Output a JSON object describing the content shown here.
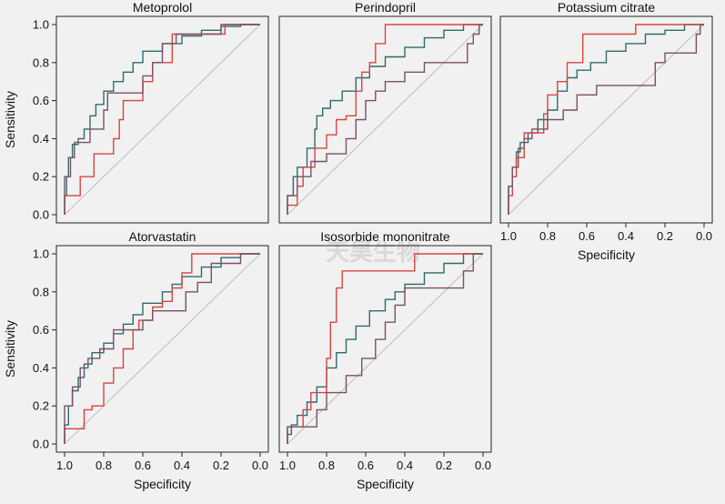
{
  "chart_data": [
    {
      "type": "line",
      "title": "Metoprolol",
      "xlabel": "",
      "ylabel": "Sensitivity",
      "xlim": [
        1.0,
        0.0
      ],
      "ylim": [
        0.0,
        1.0
      ],
      "xticks": [],
      "yticks": [
        "0.0",
        "0.2",
        "0.4",
        "0.6",
        "0.8",
        "1.0"
      ],
      "grid": false,
      "series": [
        {
          "color": "#2e6b6b",
          "points": [
            [
              1.0,
              0.0
            ],
            [
              0.99,
              0.1
            ],
            [
              0.98,
              0.2
            ],
            [
              0.96,
              0.3
            ],
            [
              0.93,
              0.37
            ],
            [
              0.9,
              0.4
            ],
            [
              0.87,
              0.45
            ],
            [
              0.84,
              0.52
            ],
            [
              0.8,
              0.58
            ],
            [
              0.75,
              0.65
            ],
            [
              0.7,
              0.7
            ],
            [
              0.65,
              0.75
            ],
            [
              0.6,
              0.8
            ],
            [
              0.5,
              0.86
            ],
            [
              0.4,
              0.9
            ],
            [
              0.3,
              0.94
            ],
            [
              0.2,
              0.97
            ],
            [
              0.1,
              0.99
            ],
            [
              0.0,
              1.0
            ]
          ]
        },
        {
          "color": "#d9443f",
          "points": [
            [
              1.0,
              0.0
            ],
            [
              0.98,
              0.1
            ],
            [
              0.92,
              0.1
            ],
            [
              0.9,
              0.2
            ],
            [
              0.85,
              0.2
            ],
            [
              0.82,
              0.32
            ],
            [
              0.75,
              0.32
            ],
            [
              0.72,
              0.4
            ],
            [
              0.7,
              0.5
            ],
            [
              0.66,
              0.6
            ],
            [
              0.6,
              0.6
            ],
            [
              0.55,
              0.7
            ],
            [
              0.45,
              0.8
            ],
            [
              0.42,
              0.95
            ],
            [
              0.18,
              0.95
            ],
            [
              0.1,
              1.0
            ],
            [
              0.0,
              1.0
            ]
          ]
        },
        {
          "color": "#7a5068",
          "points": [
            [
              1.0,
              0.0
            ],
            [
              0.97,
              0.2
            ],
            [
              0.95,
              0.3
            ],
            [
              0.92,
              0.38
            ],
            [
              0.87,
              0.38
            ],
            [
              0.85,
              0.45
            ],
            [
              0.8,
              0.45
            ],
            [
              0.78,
              0.55
            ],
            [
              0.74,
              0.64
            ],
            [
              0.6,
              0.64
            ],
            [
              0.55,
              0.73
            ],
            [
              0.5,
              0.8
            ],
            [
              0.43,
              0.9
            ],
            [
              0.4,
              0.95
            ],
            [
              0.2,
              0.95
            ],
            [
              0.18,
              1.0
            ],
            [
              0.0,
              1.0
            ]
          ]
        }
      ]
    },
    {
      "type": "line",
      "title": "Perindopril",
      "xlabel": "",
      "ylabel": "",
      "xlim": [
        1.0,
        0.0
      ],
      "ylim": [
        0.0,
        1.0
      ],
      "xticks": [],
      "yticks": [],
      "grid": false,
      "series": [
        {
          "color": "#2e6b6b",
          "points": [
            [
              1.0,
              0.0
            ],
            [
              0.97,
              0.1
            ],
            [
              0.95,
              0.2
            ],
            [
              0.9,
              0.25
            ],
            [
              0.86,
              0.35
            ],
            [
              0.85,
              0.45
            ],
            [
              0.82,
              0.52
            ],
            [
              0.78,
              0.56
            ],
            [
              0.72,
              0.6
            ],
            [
              0.65,
              0.65
            ],
            [
              0.58,
              0.72
            ],
            [
              0.5,
              0.78
            ],
            [
              0.4,
              0.83
            ],
            [
              0.3,
              0.88
            ],
            [
              0.2,
              0.93
            ],
            [
              0.1,
              0.97
            ],
            [
              0.0,
              1.0
            ]
          ]
        },
        {
          "color": "#d9443f",
          "points": [
            [
              1.0,
              0.0
            ],
            [
              0.95,
              0.05
            ],
            [
              0.92,
              0.15
            ],
            [
              0.86,
              0.25
            ],
            [
              0.8,
              0.35
            ],
            [
              0.75,
              0.42
            ],
            [
              0.7,
              0.5
            ],
            [
              0.65,
              0.52
            ],
            [
              0.62,
              0.65
            ],
            [
              0.58,
              0.75
            ],
            [
              0.55,
              0.8
            ],
            [
              0.5,
              0.9
            ],
            [
              0.4,
              1.0
            ],
            [
              0.0,
              1.0
            ]
          ]
        },
        {
          "color": "#7a5068",
          "points": [
            [
              1.0,
              0.0
            ],
            [
              0.95,
              0.1
            ],
            [
              0.88,
              0.2
            ],
            [
              0.8,
              0.28
            ],
            [
              0.7,
              0.32
            ],
            [
              0.65,
              0.4
            ],
            [
              0.6,
              0.5
            ],
            [
              0.55,
              0.6
            ],
            [
              0.5,
              0.65
            ],
            [
              0.4,
              0.7
            ],
            [
              0.3,
              0.75
            ],
            [
              0.25,
              0.8
            ],
            [
              0.08,
              0.8
            ],
            [
              0.05,
              0.9
            ],
            [
              0.02,
              0.95
            ],
            [
              0.0,
              1.0
            ]
          ]
        }
      ]
    },
    {
      "type": "line",
      "title": "Potassium citrate",
      "xlabel": "Specificity",
      "ylabel": "",
      "xlim": [
        1.0,
        0.0
      ],
      "ylim": [
        0.0,
        1.0
      ],
      "xticks": [
        "1.0",
        "0.8",
        "0.6",
        "0.4",
        "0.2",
        "0.0"
      ],
      "yticks": [],
      "grid": false,
      "series": [
        {
          "color": "#2e6b6b",
          "points": [
            [
              1.0,
              0.0
            ],
            [
              0.98,
              0.15
            ],
            [
              0.96,
              0.25
            ],
            [
              0.94,
              0.33
            ],
            [
              0.9,
              0.38
            ],
            [
              0.85,
              0.43
            ],
            [
              0.8,
              0.5
            ],
            [
              0.75,
              0.55
            ],
            [
              0.7,
              0.65
            ],
            [
              0.65,
              0.72
            ],
            [
              0.58,
              0.76
            ],
            [
              0.5,
              0.8
            ],
            [
              0.4,
              0.86
            ],
            [
              0.3,
              0.9
            ],
            [
              0.2,
              0.95
            ],
            [
              0.1,
              0.97
            ],
            [
              0.0,
              1.0
            ]
          ]
        },
        {
          "color": "#d9443f",
          "points": [
            [
              1.0,
              0.0
            ],
            [
              0.98,
              0.1
            ],
            [
              0.96,
              0.2
            ],
            [
              0.92,
              0.3
            ],
            [
              0.88,
              0.43
            ],
            [
              0.82,
              0.43
            ],
            [
              0.8,
              0.53
            ],
            [
              0.75,
              0.63
            ],
            [
              0.7,
              0.7
            ],
            [
              0.62,
              0.8
            ],
            [
              0.55,
              0.95
            ],
            [
              0.35,
              0.95
            ],
            [
              0.3,
              1.0
            ],
            [
              0.0,
              1.0
            ]
          ]
        },
        {
          "color": "#7a5068",
          "points": [
            [
              1.0,
              0.0
            ],
            [
              0.98,
              0.15
            ],
            [
              0.95,
              0.25
            ],
            [
              0.92,
              0.35
            ],
            [
              0.88,
              0.4
            ],
            [
              0.8,
              0.45
            ],
            [
              0.72,
              0.5
            ],
            [
              0.65,
              0.55
            ],
            [
              0.55,
              0.63
            ],
            [
              0.45,
              0.68
            ],
            [
              0.25,
              0.68
            ],
            [
              0.2,
              0.8
            ],
            [
              0.15,
              0.85
            ],
            [
              0.04,
              0.85
            ],
            [
              0.02,
              0.95
            ],
            [
              0.0,
              1.0
            ]
          ]
        }
      ]
    },
    {
      "type": "line",
      "title": "Atorvastatin",
      "xlabel": "Specificity",
      "ylabel": "Sensitivity",
      "xlim": [
        1.0,
        0.0
      ],
      "ylim": [
        0.0,
        1.0
      ],
      "xticks": [
        "1.0",
        "0.8",
        "0.6",
        "0.4",
        "0.2",
        "0.0"
      ],
      "yticks": [
        "0.0",
        "0.2",
        "0.4",
        "0.6",
        "0.8",
        "1.0"
      ],
      "grid": false,
      "series": [
        {
          "color": "#2e6b6b",
          "points": [
            [
              1.0,
              0.0
            ],
            [
              0.98,
              0.1
            ],
            [
              0.96,
              0.2
            ],
            [
              0.93,
              0.28
            ],
            [
              0.9,
              0.35
            ],
            [
              0.86,
              0.42
            ],
            [
              0.8,
              0.48
            ],
            [
              0.75,
              0.53
            ],
            [
              0.7,
              0.58
            ],
            [
              0.65,
              0.63
            ],
            [
              0.6,
              0.68
            ],
            [
              0.5,
              0.74
            ],
            [
              0.45,
              0.8
            ],
            [
              0.4,
              0.84
            ],
            [
              0.3,
              0.88
            ],
            [
              0.2,
              0.93
            ],
            [
              0.1,
              0.98
            ],
            [
              0.0,
              1.0
            ]
          ]
        },
        {
          "color": "#d9443f",
          "points": [
            [
              1.0,
              0.0
            ],
            [
              0.98,
              0.08
            ],
            [
              0.9,
              0.08
            ],
            [
              0.86,
              0.18
            ],
            [
              0.8,
              0.2
            ],
            [
              0.75,
              0.32
            ],
            [
              0.7,
              0.4
            ],
            [
              0.65,
              0.5
            ],
            [
              0.62,
              0.6
            ],
            [
              0.55,
              0.65
            ],
            [
              0.5,
              0.72
            ],
            [
              0.45,
              0.75
            ],
            [
              0.4,
              0.82
            ],
            [
              0.35,
              0.9
            ],
            [
              0.3,
              1.0
            ],
            [
              0.0,
              1.0
            ]
          ]
        },
        {
          "color": "#7a5068",
          "points": [
            [
              1.0,
              0.0
            ],
            [
              0.96,
              0.2
            ],
            [
              0.92,
              0.3
            ],
            [
              0.88,
              0.4
            ],
            [
              0.82,
              0.45
            ],
            [
              0.75,
              0.5
            ],
            [
              0.7,
              0.6
            ],
            [
              0.6,
              0.6
            ],
            [
              0.55,
              0.65
            ],
            [
              0.45,
              0.7
            ],
            [
              0.38,
              0.7
            ],
            [
              0.32,
              0.8
            ],
            [
              0.25,
              0.85
            ],
            [
              0.1,
              0.95
            ],
            [
              0.0,
              1.0
            ]
          ]
        }
      ]
    },
    {
      "type": "line",
      "title": "Isosorbide mononitrate",
      "xlabel": "Specificity",
      "ylabel": "",
      "xlim": [
        1.0,
        0.0
      ],
      "ylim": [
        0.0,
        1.0
      ],
      "xticks": [
        "1.0",
        "0.8",
        "0.6",
        "0.4",
        "0.2",
        "0.0"
      ],
      "yticks": [],
      "grid": false,
      "series": [
        {
          "color": "#2e6b6b",
          "points": [
            [
              1.0,
              0.0
            ],
            [
              0.98,
              0.05
            ],
            [
              0.95,
              0.1
            ],
            [
              0.9,
              0.15
            ],
            [
              0.85,
              0.22
            ],
            [
              0.8,
              0.3
            ],
            [
              0.75,
              0.4
            ],
            [
              0.7,
              0.48
            ],
            [
              0.65,
              0.55
            ],
            [
              0.58,
              0.62
            ],
            [
              0.5,
              0.7
            ],
            [
              0.45,
              0.76
            ],
            [
              0.4,
              0.8
            ],
            [
              0.3,
              0.84
            ],
            [
              0.2,
              0.9
            ],
            [
              0.1,
              0.95
            ],
            [
              0.0,
              1.0
            ]
          ]
        },
        {
          "color": "#d9443f",
          "points": [
            [
              1.0,
              0.0
            ],
            [
              0.98,
              0.09
            ],
            [
              0.92,
              0.09
            ],
            [
              0.88,
              0.18
            ],
            [
              0.8,
              0.27
            ],
            [
              0.78,
              0.45
            ],
            [
              0.75,
              0.64
            ],
            [
              0.72,
              0.82
            ],
            [
              0.7,
              0.91
            ],
            [
              0.35,
              0.91
            ],
            [
              0.3,
              1.0
            ],
            [
              0.0,
              1.0
            ]
          ]
        },
        {
          "color": "#7a5068",
          "points": [
            [
              1.0,
              0.0
            ],
            [
              0.98,
              0.09
            ],
            [
              0.85,
              0.09
            ],
            [
              0.8,
              0.18
            ],
            [
              0.7,
              0.27
            ],
            [
              0.62,
              0.36
            ],
            [
              0.55,
              0.45
            ],
            [
              0.5,
              0.55
            ],
            [
              0.45,
              0.64
            ],
            [
              0.4,
              0.73
            ],
            [
              0.35,
              0.82
            ],
            [
              0.1,
              0.82
            ],
            [
              0.05,
              0.91
            ],
            [
              0.0,
              1.0
            ]
          ]
        }
      ]
    }
  ],
  "watermark": "天昊生物"
}
